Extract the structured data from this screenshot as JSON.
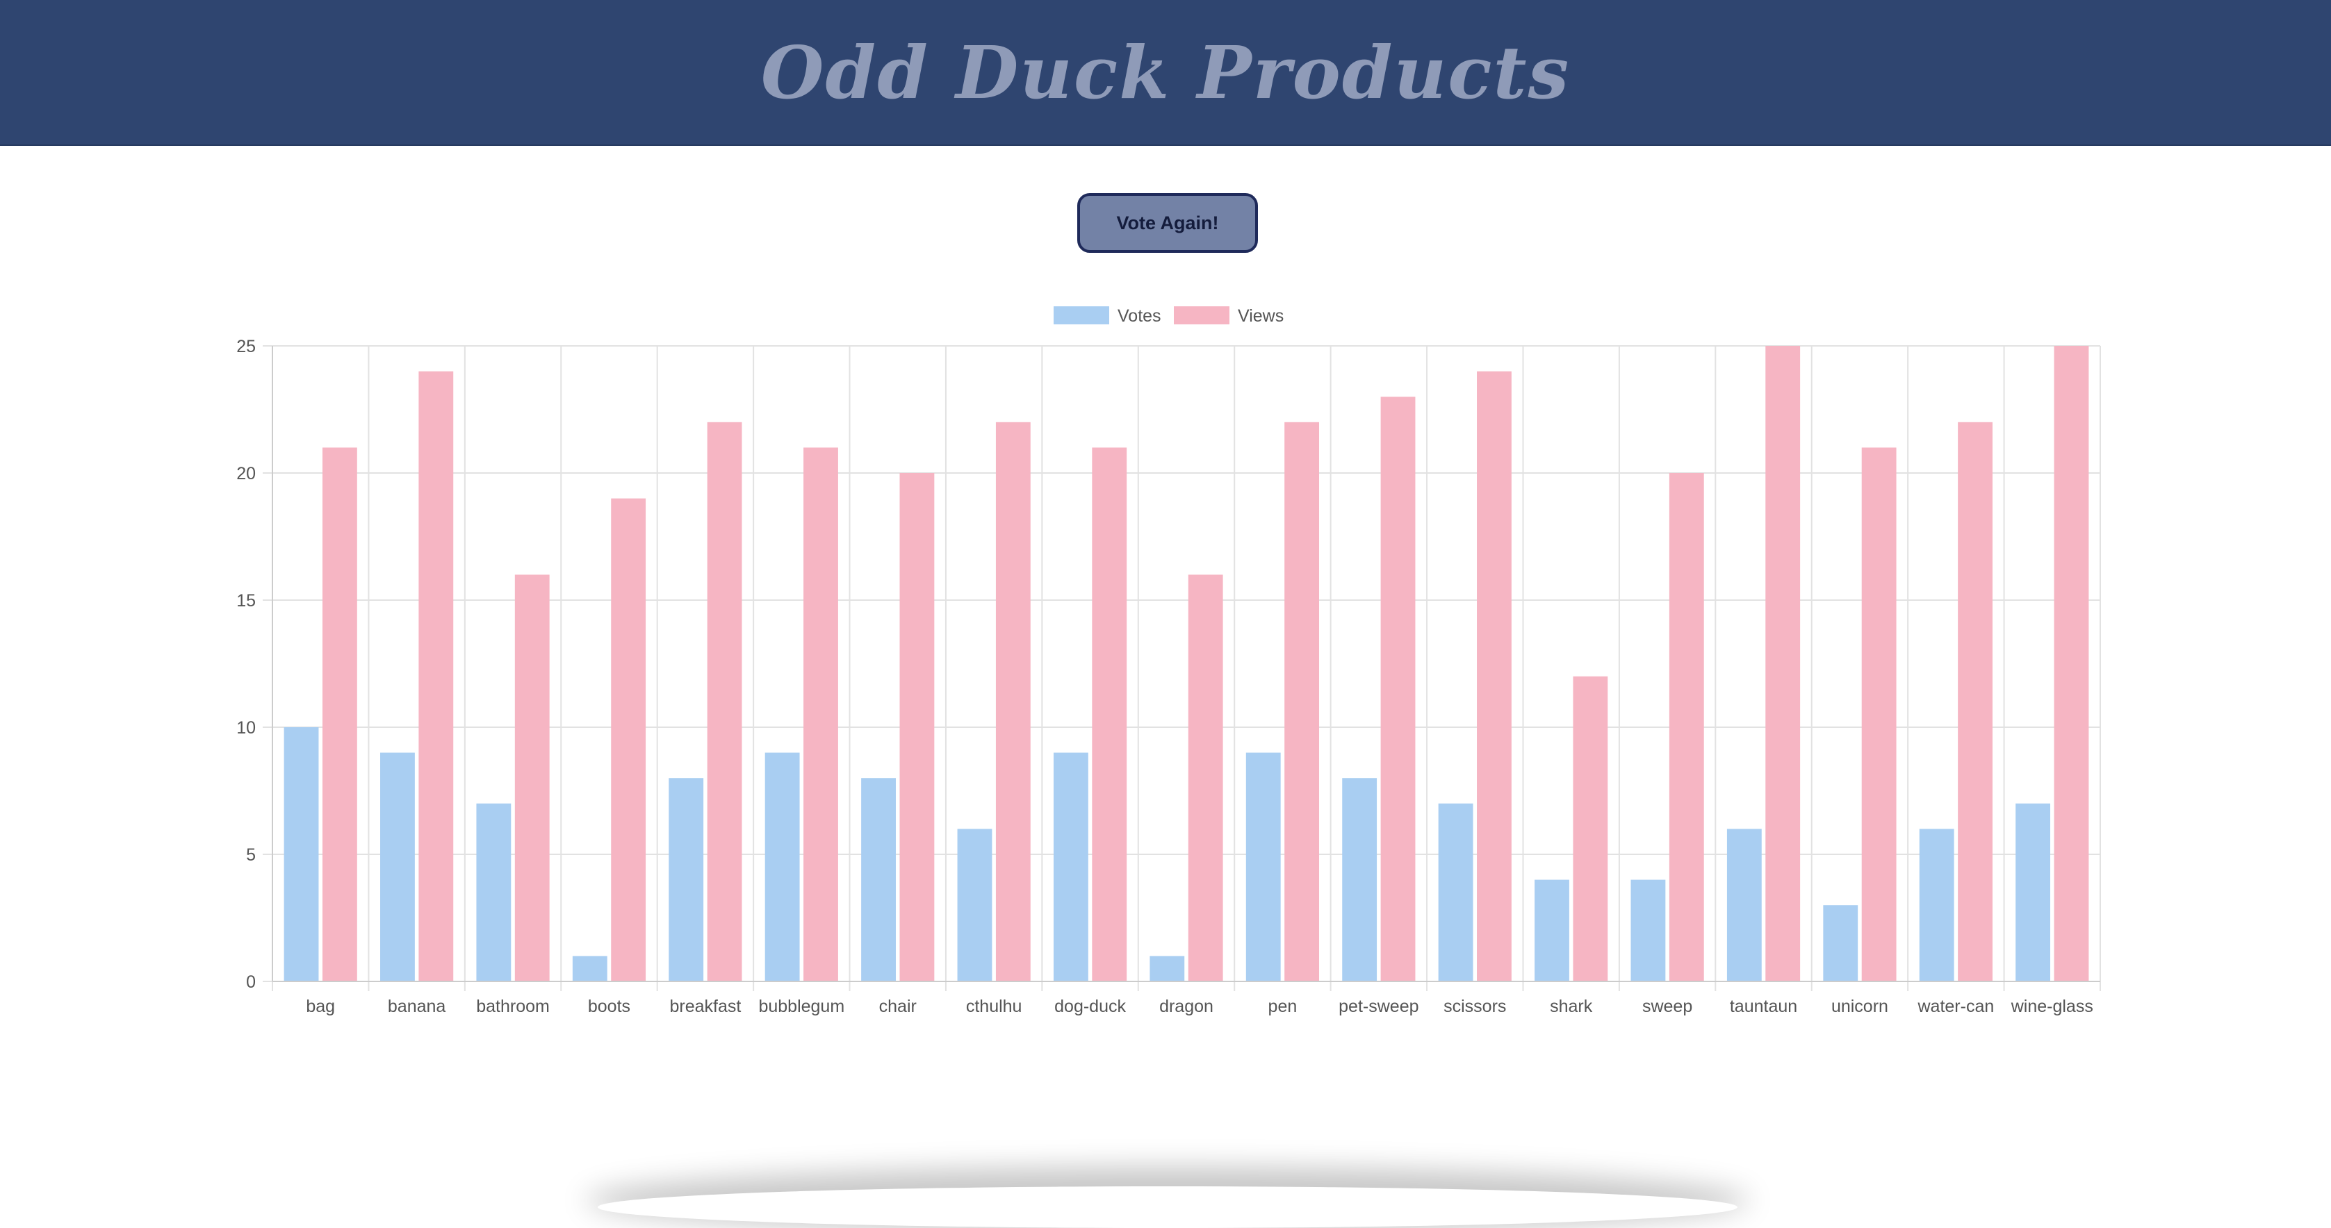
{
  "header": {
    "title": "Odd Duck Products"
  },
  "controls": {
    "vote_again_label": "Vote Again!"
  },
  "colors": {
    "header_bg": "#2f4570",
    "title": "#8f9bb8",
    "votes": "#a9cef2",
    "views": "#f6b5c3",
    "grid": "#e2e2e2",
    "tick_text": "#555555"
  },
  "chart_data": {
    "type": "bar",
    "title": "",
    "xlabel": "",
    "ylabel": "",
    "ylim": [
      0,
      25
    ],
    "yticks": [
      0,
      5,
      10,
      15,
      20,
      25
    ],
    "grid": true,
    "legend_position": "top-center",
    "categories": [
      "bag",
      "banana",
      "bathroom",
      "boots",
      "breakfast",
      "bubblegum",
      "chair",
      "cthulhu",
      "dog-duck",
      "dragon",
      "pen",
      "pet-sweep",
      "scissors",
      "shark",
      "sweep",
      "tauntaun",
      "unicorn",
      "water-can",
      "wine-glass"
    ],
    "series": [
      {
        "name": "Votes",
        "color": "#a9cef2",
        "values": [
          10,
          9,
          7,
          1,
          8,
          9,
          8,
          6,
          9,
          1,
          9,
          8,
          7,
          4,
          4,
          6,
          3,
          6,
          7
        ]
      },
      {
        "name": "Views",
        "color": "#f6b5c3",
        "values": [
          21,
          24,
          16,
          19,
          22,
          21,
          20,
          22,
          21,
          16,
          22,
          23,
          24,
          12,
          20,
          25,
          21,
          22,
          25
        ]
      }
    ]
  }
}
